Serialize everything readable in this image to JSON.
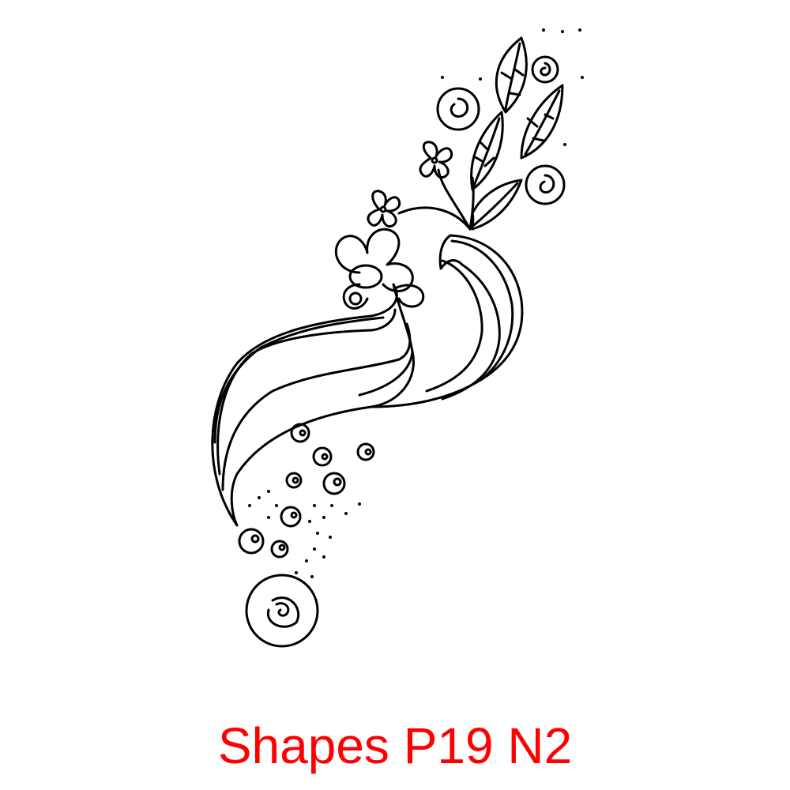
{
  "caption": {
    "text": "Shapes P19 N2",
    "color": "#ff0000"
  },
  "artwork": {
    "line_color": "#000000",
    "background": "#ffffff"
  }
}
